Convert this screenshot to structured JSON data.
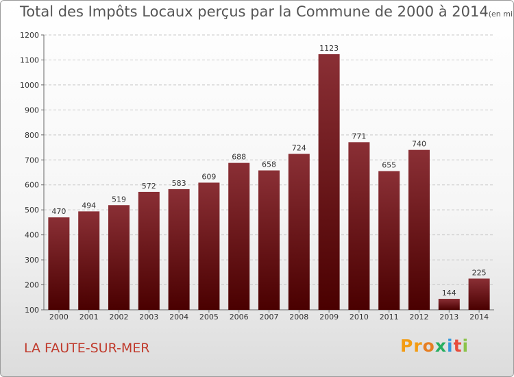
{
  "header": {
    "title": "Total des Impôts Locaux perçus par la Commune de 2000 à 2014",
    "unit": "(en milliers d'€)"
  },
  "commune": "LA FAUTE-SUR-MER",
  "logo": "Proxiti",
  "colors": {
    "bar_top": "#8a2f35",
    "bar_bottom": "#4a0000",
    "commune_text": "#c0392b",
    "logo_letters": [
      "#f39c12",
      "#f39c12",
      "#e67e22",
      "#27ae60",
      "#3498db",
      "#e74c3c",
      "#8bc34a"
    ]
  },
  "chart_data": {
    "type": "bar",
    "title": "Total des Impôts Locaux perçus par la Commune de 2000 à 2014",
    "subtitle": "(en milliers d'€)",
    "categories": [
      "2000",
      "2001",
      "2002",
      "2003",
      "2004",
      "2005",
      "2006",
      "2007",
      "2008",
      "2009",
      "2010",
      "2011",
      "2012",
      "2013",
      "2014"
    ],
    "values": [
      470,
      494,
      519,
      572,
      583,
      609,
      688,
      658,
      724,
      1123,
      771,
      655,
      740,
      144,
      225
    ],
    "ylim": [
      100,
      1200
    ],
    "yticks": [
      100,
      200,
      300,
      400,
      500,
      600,
      700,
      800,
      900,
      1000,
      1100,
      1200
    ],
    "grid": true,
    "xlabel": "",
    "ylabel": ""
  }
}
